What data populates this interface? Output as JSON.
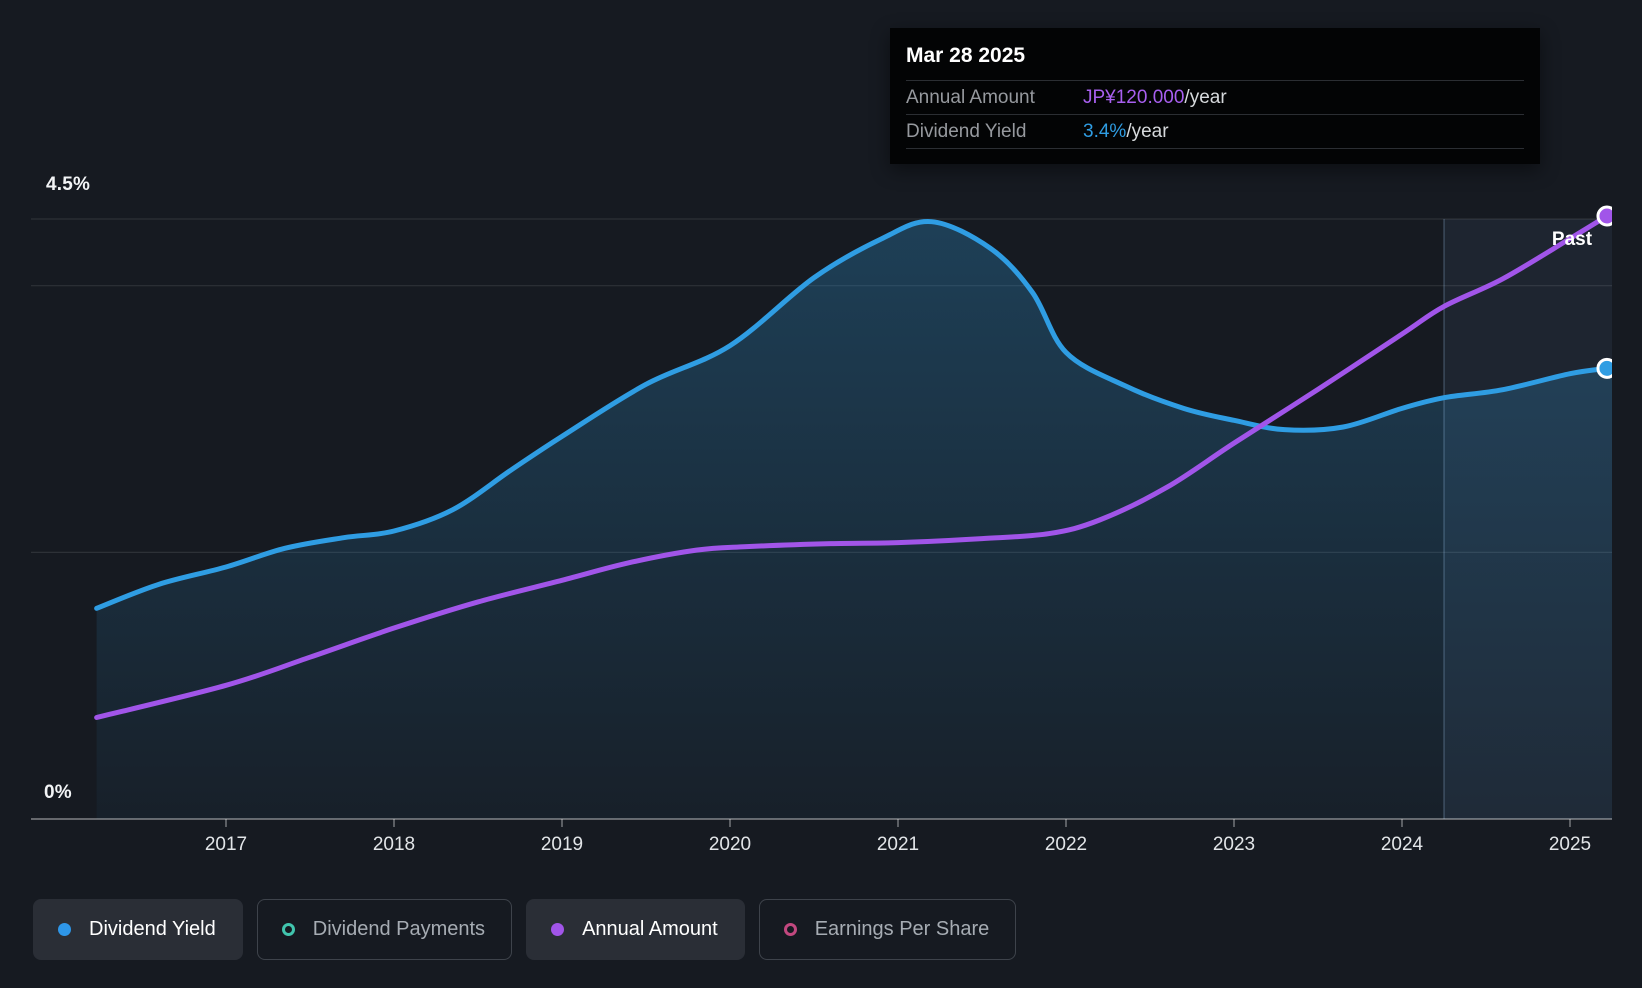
{
  "tooltip": {
    "date": "Mar 28 2025",
    "rows": [
      {
        "label": "Annual Amount",
        "value": "JP¥120.000",
        "suffix": "/year",
        "color": "#a85ff0"
      },
      {
        "label": "Dividend Yield",
        "value": "3.4%",
        "suffix": "/year",
        "color": "#2f9de3"
      }
    ]
  },
  "axis": {
    "y_top_label": "4.5%",
    "y_bottom_label": "0%",
    "past_label": "Past"
  },
  "legend": [
    {
      "label": "Dividend Yield",
      "marker": "filled",
      "color": "#2e96e8",
      "active": true
    },
    {
      "label": "Dividend Payments",
      "marker": "hollow",
      "color": "#41c5ae",
      "active": false
    },
    {
      "label": "Annual Amount",
      "marker": "filled",
      "color": "#a155e9",
      "active": true
    },
    {
      "label": "Earnings Per Share",
      "marker": "hollow",
      "color": "#c2487f",
      "active": false
    }
  ],
  "colors": {
    "background": "#161a21",
    "blue_line": "#2f9de3",
    "purple_line": "#a155e9",
    "gridline": "rgba(255,255,255,0.10)",
    "axis_line": "rgba(255,255,255,0.30)",
    "tick_label": "#e2e5e8",
    "past_band": "rgba(125,180,235,0.08)",
    "past_divider": "rgba(165,205,245,0.25)",
    "fill_top": "#2e8fc9",
    "fill_top_opacity": 0.32,
    "fill_bottom_opacity": 0.05
  },
  "chart_data": {
    "type": "line",
    "x_range": [
      2016.23,
      2025.25
    ],
    "x_ticks": [
      "2017",
      "2018",
      "2019",
      "2020",
      "2021",
      "2022",
      "2023",
      "2024",
      "2025"
    ],
    "x_tick_values": [
      2017,
      2018,
      2019,
      2020,
      2021,
      2022,
      2023,
      2024,
      2025
    ],
    "y_axis": {
      "unit": "%",
      "min": 0,
      "max": 4.5,
      "gridline_values": [
        4.5,
        4.0,
        2.0,
        0
      ]
    },
    "y2_axis": {
      "unit": "JP¥",
      "min": 0,
      "max": 120
    },
    "past_divider_x": 2024.25,
    "legend_position": "bottom",
    "series": [
      {
        "name": "Dividend Yield",
        "unit": "%",
        "axis": "y",
        "color": "#2f9de3",
        "end_label": "3.4%/year",
        "points": [
          [
            2016.23,
            1.58
          ],
          [
            2016.6,
            1.76
          ],
          [
            2017,
            1.89
          ],
          [
            2017.35,
            2.03
          ],
          [
            2017.7,
            2.11
          ],
          [
            2018,
            2.16
          ],
          [
            2018.35,
            2.32
          ],
          [
            2018.7,
            2.62
          ],
          [
            2019,
            2.87
          ],
          [
            2019.5,
            3.26
          ],
          [
            2020,
            3.55
          ],
          [
            2020.5,
            4.06
          ],
          [
            2020.9,
            4.35
          ],
          [
            2021.2,
            4.48
          ],
          [
            2021.55,
            4.28
          ],
          [
            2021.8,
            3.95
          ],
          [
            2022,
            3.5
          ],
          [
            2022.35,
            3.25
          ],
          [
            2022.7,
            3.08
          ],
          [
            2023,
            2.99
          ],
          [
            2023.3,
            2.92
          ],
          [
            2023.65,
            2.94
          ],
          [
            2024,
            3.08
          ],
          [
            2024.25,
            3.16
          ],
          [
            2024.6,
            3.22
          ],
          [
            2025,
            3.34
          ],
          [
            2025.22,
            3.38
          ]
        ]
      },
      {
        "name": "Annual Amount",
        "unit": "JP¥/share",
        "axis": "y2",
        "color": "#a155e9",
        "end_label": "JP¥120.000/year",
        "points": [
          [
            2016.23,
            20.2
          ],
          [
            2017,
            26.6
          ],
          [
            2017.5,
            32.2
          ],
          [
            2018,
            38.0
          ],
          [
            2018.5,
            43.2
          ],
          [
            2019,
            47.5
          ],
          [
            2019.4,
            51.0
          ],
          [
            2019.8,
            53.5
          ],
          [
            2020.1,
            54.2
          ],
          [
            2020.6,
            54.8
          ],
          [
            2021,
            55.0
          ],
          [
            2021.5,
            55.8
          ],
          [
            2021.9,
            56.8
          ],
          [
            2022.2,
            59.5
          ],
          [
            2022.6,
            66.0
          ],
          [
            2023,
            74.8
          ],
          [
            2023.5,
            85.5
          ],
          [
            2024,
            96.5
          ],
          [
            2024.25,
            102.0
          ],
          [
            2024.6,
            107.5
          ],
          [
            2025,
            115.5
          ],
          [
            2025.22,
            120.0
          ]
        ]
      }
    ]
  }
}
